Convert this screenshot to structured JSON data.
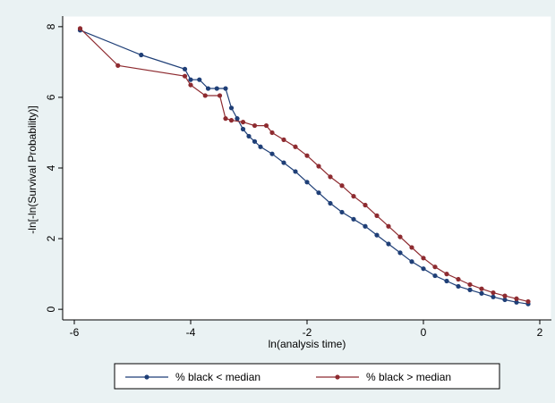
{
  "chart_data": {
    "type": "line",
    "title": "",
    "xlabel": "ln(analysis time)",
    "ylabel": "-ln[-ln(Survival Probability)]",
    "xlim": [
      -6.2,
      2.2
    ],
    "ylim": [
      -0.3,
      8.3
    ],
    "xticks": [
      -6,
      -4,
      -2,
      0,
      2
    ],
    "yticks": [
      0,
      2,
      4,
      6,
      8
    ],
    "grid": false,
    "legend_position": "bottom",
    "series": [
      {
        "name": "% black < median",
        "color": "#1f3f77",
        "x": [
          -5.9,
          -4.85,
          -4.1,
          -4.0,
          -3.85,
          -3.7,
          -3.55,
          -3.4,
          -3.3,
          -3.2,
          -3.1,
          -3.0,
          -2.9,
          -2.8,
          -2.6,
          -2.4,
          -2.2,
          -2.0,
          -1.8,
          -1.6,
          -1.4,
          -1.2,
          -1.0,
          -0.8,
          -0.6,
          -0.4,
          -0.2,
          0.0,
          0.2,
          0.4,
          0.6,
          0.8,
          1.0,
          1.2,
          1.4,
          1.6,
          1.8
        ],
        "y": [
          7.9,
          7.2,
          6.8,
          6.5,
          6.5,
          6.25,
          6.25,
          6.25,
          5.7,
          5.4,
          5.1,
          4.9,
          4.75,
          4.6,
          4.4,
          4.15,
          3.9,
          3.6,
          3.3,
          3.0,
          2.75,
          2.55,
          2.35,
          2.1,
          1.85,
          1.6,
          1.35,
          1.15,
          0.95,
          0.8,
          0.65,
          0.55,
          0.45,
          0.35,
          0.27,
          0.2,
          0.15
        ]
      },
      {
        "name": "% black > median",
        "color": "#8e2b30",
        "x": [
          -5.9,
          -5.25,
          -4.1,
          -4.0,
          -3.75,
          -3.5,
          -3.4,
          -3.3,
          -3.1,
          -2.9,
          -2.7,
          -2.6,
          -2.4,
          -2.2,
          -2.0,
          -1.8,
          -1.6,
          -1.4,
          -1.2,
          -1.0,
          -0.8,
          -0.6,
          -0.4,
          -0.2,
          0.0,
          0.2,
          0.4,
          0.6,
          0.8,
          1.0,
          1.2,
          1.4,
          1.6,
          1.8
        ],
        "y": [
          7.95,
          6.9,
          6.6,
          6.35,
          6.05,
          6.05,
          5.4,
          5.35,
          5.3,
          5.2,
          5.2,
          5.0,
          4.8,
          4.6,
          4.35,
          4.05,
          3.75,
          3.5,
          3.2,
          2.95,
          2.65,
          2.35,
          2.05,
          1.75,
          1.45,
          1.2,
          1.0,
          0.85,
          0.7,
          0.58,
          0.47,
          0.38,
          0.3,
          0.22
        ]
      }
    ]
  }
}
